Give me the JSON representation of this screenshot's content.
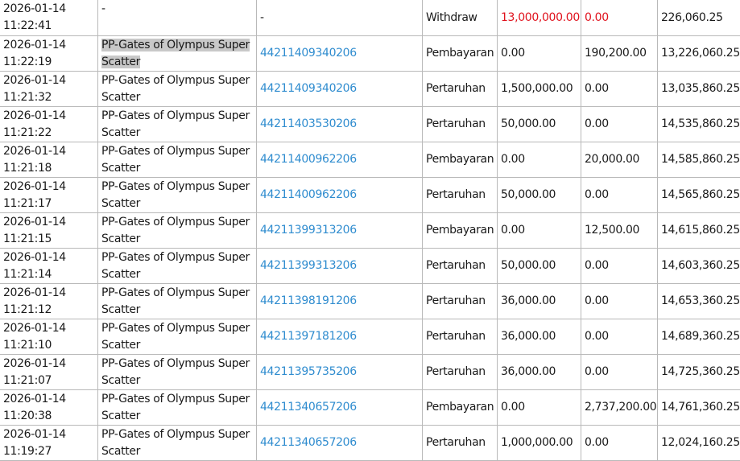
{
  "rows": [
    {
      "date": "2026-01-14",
      "time": "11:22:41",
      "game_1": "-",
      "game_2": "",
      "id": "-",
      "type": "Withdraw",
      "debit": "13,000,000.00",
      "credit": "0.00",
      "balance": "226,060.25"
    },
    {
      "date": "2026-01-14",
      "time": "11:22:19",
      "game_1": "PP-Gates of Olympus Super",
      "game_2": "Scatter",
      "id": "44211409340206",
      "type": "Pembayaran",
      "debit": "0.00",
      "credit": "190,200.00",
      "balance": "13,226,060.25"
    },
    {
      "date": "2026-01-14",
      "time": "11:21:32",
      "game_1": "PP-Gates of Olympus Super",
      "game_2": "Scatter",
      "id": "44211409340206",
      "type": "Pertaruhan",
      "debit": "1,500,000.00",
      "credit": "0.00",
      "balance": "13,035,860.25"
    },
    {
      "date": "2026-01-14",
      "time": "11:21:22",
      "game_1": "PP-Gates of Olympus Super",
      "game_2": "Scatter",
      "id": "44211403530206",
      "type": "Pertaruhan",
      "debit": "50,000.00",
      "credit": "0.00",
      "balance": "14,535,860.25"
    },
    {
      "date": "2026-01-14",
      "time": "11:21:18",
      "game_1": "PP-Gates of Olympus Super",
      "game_2": "Scatter",
      "id": "44211400962206",
      "type": "Pembayaran",
      "debit": "0.00",
      "credit": "20,000.00",
      "balance": "14,585,860.25"
    },
    {
      "date": "2026-01-14",
      "time": "11:21:17",
      "game_1": "PP-Gates of Olympus Super",
      "game_2": "Scatter",
      "id": "44211400962206",
      "type": "Pertaruhan",
      "debit": "50,000.00",
      "credit": "0.00",
      "balance": "14,565,860.25"
    },
    {
      "date": "2026-01-14",
      "time": "11:21:15",
      "game_1": "PP-Gates of Olympus Super",
      "game_2": "Scatter",
      "id": "44211399313206",
      "type": "Pembayaran",
      "debit": "0.00",
      "credit": "12,500.00",
      "balance": "14,615,860.25"
    },
    {
      "date": "2026-01-14",
      "time": "11:21:14",
      "game_1": "PP-Gates of Olympus Super",
      "game_2": "Scatter",
      "id": "44211399313206",
      "type": "Pertaruhan",
      "debit": "50,000.00",
      "credit": "0.00",
      "balance": "14,603,360.25"
    },
    {
      "date": "2026-01-14",
      "time": "11:21:12",
      "game_1": "PP-Gates of Olympus Super",
      "game_2": "Scatter",
      "id": "44211398191206",
      "type": "Pertaruhan",
      "debit": "36,000.00",
      "credit": "0.00",
      "balance": "14,653,360.25"
    },
    {
      "date": "2026-01-14",
      "time": "11:21:10",
      "game_1": "PP-Gates of Olympus Super",
      "game_2": "Scatter",
      "id": "44211397181206",
      "type": "Pertaruhan",
      "debit": "36,000.00",
      "credit": "0.00",
      "balance": "14,689,360.25"
    },
    {
      "date": "2026-01-14",
      "time": "11:21:07",
      "game_1": "PP-Gates of Olympus Super",
      "game_2": "Scatter",
      "id": "44211395735206",
      "type": "Pertaruhan",
      "debit": "36,000.00",
      "credit": "0.00",
      "balance": "14,725,360.25"
    },
    {
      "date": "2026-01-14",
      "time": "11:20:38",
      "game_1": "PP-Gates of Olympus Super",
      "game_2": "Scatter",
      "id": "44211340657206",
      "type": "Pembayaran",
      "debit": "0.00",
      "credit": "2,737,200.00",
      "balance": "14,761,360.25"
    },
    {
      "date": "2026-01-14",
      "time": "11:19:27",
      "game_1": "PP-Gates of Olympus Super",
      "game_2": "Scatter",
      "id": "44211340657206",
      "type": "Pertaruhan",
      "debit": "1,000,000.00",
      "credit": "0.00",
      "balance": "12,024,160.25"
    }
  ],
  "colors": {
    "link": "#2f8ccf",
    "withdraw_amount": "#e0121d",
    "selection": "#c8c8c8",
    "grid": "#b9b9b9"
  }
}
